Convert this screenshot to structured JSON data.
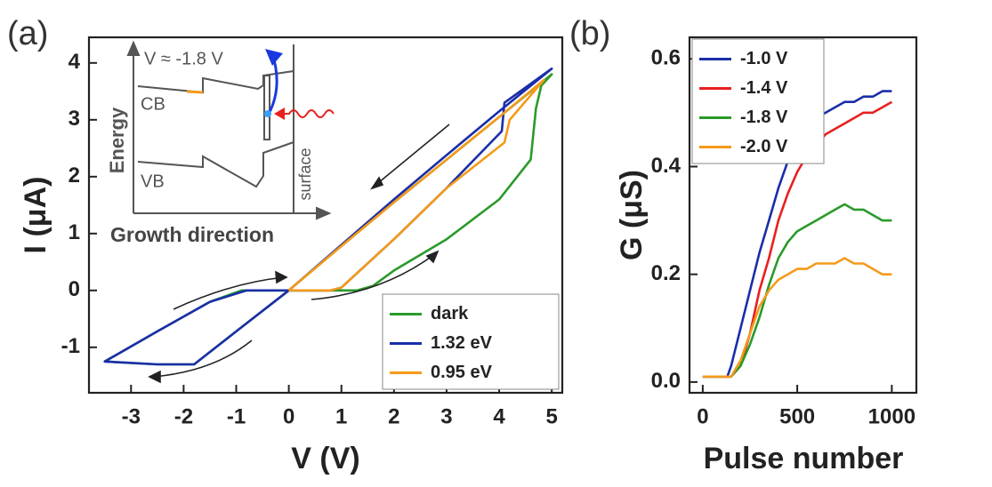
{
  "chart_data": [
    {
      "type": "line",
      "panel_label": "(a)",
      "x_label": "V (V)",
      "y_label": "I (μA)",
      "xlim": [
        -3.8,
        5.2
      ],
      "ylim": [
        -1.8,
        4.45
      ],
      "xticks": [
        -3,
        -2,
        -1,
        0,
        1,
        2,
        3,
        4,
        5
      ],
      "yticks": [
        -1,
        0,
        1,
        2,
        3,
        4
      ],
      "legend": "lower right",
      "annotations": [
        "V ≈ -1.8 V",
        "CB",
        "VB",
        "Energy",
        "surface",
        "Growth direction"
      ],
      "series": [
        {
          "name": "dark",
          "color": "#2a9a2a",
          "x": [
            0,
            1.3,
            1.6,
            2,
            3,
            4,
            4.6,
            4.7,
            4.8,
            5,
            4,
            3,
            2,
            1,
            0,
            -1,
            -1.8,
            -2.5,
            -3.5,
            -2.5,
            -1.5,
            -0.9,
            0
          ],
          "values": [
            0,
            0,
            0.08,
            0.35,
            0.9,
            1.6,
            2.3,
            3.2,
            3.6,
            3.8,
            3.05,
            2.3,
            1.55,
            0.78,
            0,
            -0.72,
            -1.3,
            -1.3,
            -1.25,
            -0.72,
            -0.2,
            0,
            0
          ]
        },
        {
          "name": "1.32 eV",
          "color": "#1a2ea8",
          "x": [
            0,
            0.8,
            1,
            2,
            3,
            4.05,
            4.1,
            5,
            4,
            3,
            2,
            1,
            0,
            -1,
            -1.8,
            -2.5,
            -3.5,
            -2.5,
            -1.5,
            -0.8,
            0
          ],
          "values": [
            0,
            0,
            0.05,
            0.9,
            1.8,
            2.8,
            3.3,
            3.9,
            3.15,
            2.38,
            1.6,
            0.8,
            0,
            -0.72,
            -1.3,
            -1.3,
            -1.25,
            -0.72,
            -0.2,
            0,
            0
          ]
        },
        {
          "name": "0.95 eV",
          "color": "#f59a1a",
          "x": [
            0,
            0.8,
            1,
            2,
            3,
            4.1,
            4.2,
            4.85,
            4,
            3,
            2,
            1,
            0
          ],
          "values": [
            0,
            0,
            0.05,
            0.9,
            1.8,
            2.6,
            3.0,
            3.7,
            3.05,
            2.3,
            1.55,
            0.78,
            0
          ]
        }
      ]
    },
    {
      "type": "line",
      "panel_label": "(b)",
      "x_label": "Pulse number",
      "y_label": "G (μS)",
      "xlim": [
        -70,
        1130
      ],
      "ylim": [
        -0.02,
        0.64
      ],
      "xticks": [
        0,
        500,
        1000
      ],
      "yticks": [
        {
          "value": 0,
          "label": "0.0"
        },
        0.2,
        0.4,
        0.6
      ],
      "legend": "upper left",
      "x": [
        0,
        50,
        100,
        130,
        150,
        200,
        250,
        300,
        350,
        400,
        450,
        500,
        550,
        600,
        650,
        700,
        750,
        800,
        850,
        900,
        950,
        1000
      ],
      "series": [
        {
          "name": "-1.0 V",
          "color": "#1a2ea8",
          "values": [
            0.01,
            0.01,
            0.01,
            0.01,
            0.03,
            0.1,
            0.17,
            0.24,
            0.3,
            0.36,
            0.41,
            0.44,
            0.47,
            0.49,
            0.5,
            0.51,
            0.52,
            0.52,
            0.53,
            0.53,
            0.54,
            0.54
          ]
        },
        {
          "name": "-1.4 V",
          "color": "#e82020",
          "values": [
            0.01,
            0.01,
            0.01,
            0.01,
            0.01,
            0.03,
            0.09,
            0.17,
            0.23,
            0.3,
            0.35,
            0.39,
            0.42,
            0.44,
            0.46,
            0.47,
            0.48,
            0.49,
            0.5,
            0.5,
            0.51,
            0.52
          ]
        },
        {
          "name": "-1.8 V",
          "color": "#2a9a2a",
          "values": [
            0.01,
            0.01,
            0.01,
            0.01,
            0.01,
            0.03,
            0.07,
            0.12,
            0.18,
            0.23,
            0.26,
            0.28,
            0.29,
            0.3,
            0.31,
            0.32,
            0.33,
            0.32,
            0.32,
            0.31,
            0.3,
            0.3
          ]
        },
        {
          "name": "-2.0 V",
          "color": "#f59a1a",
          "values": [
            0.01,
            0.01,
            0.01,
            0.01,
            0.01,
            0.04,
            0.09,
            0.14,
            0.17,
            0.19,
            0.2,
            0.21,
            0.21,
            0.22,
            0.22,
            0.22,
            0.23,
            0.22,
            0.22,
            0.21,
            0.2,
            0.2
          ]
        }
      ]
    }
  ]
}
